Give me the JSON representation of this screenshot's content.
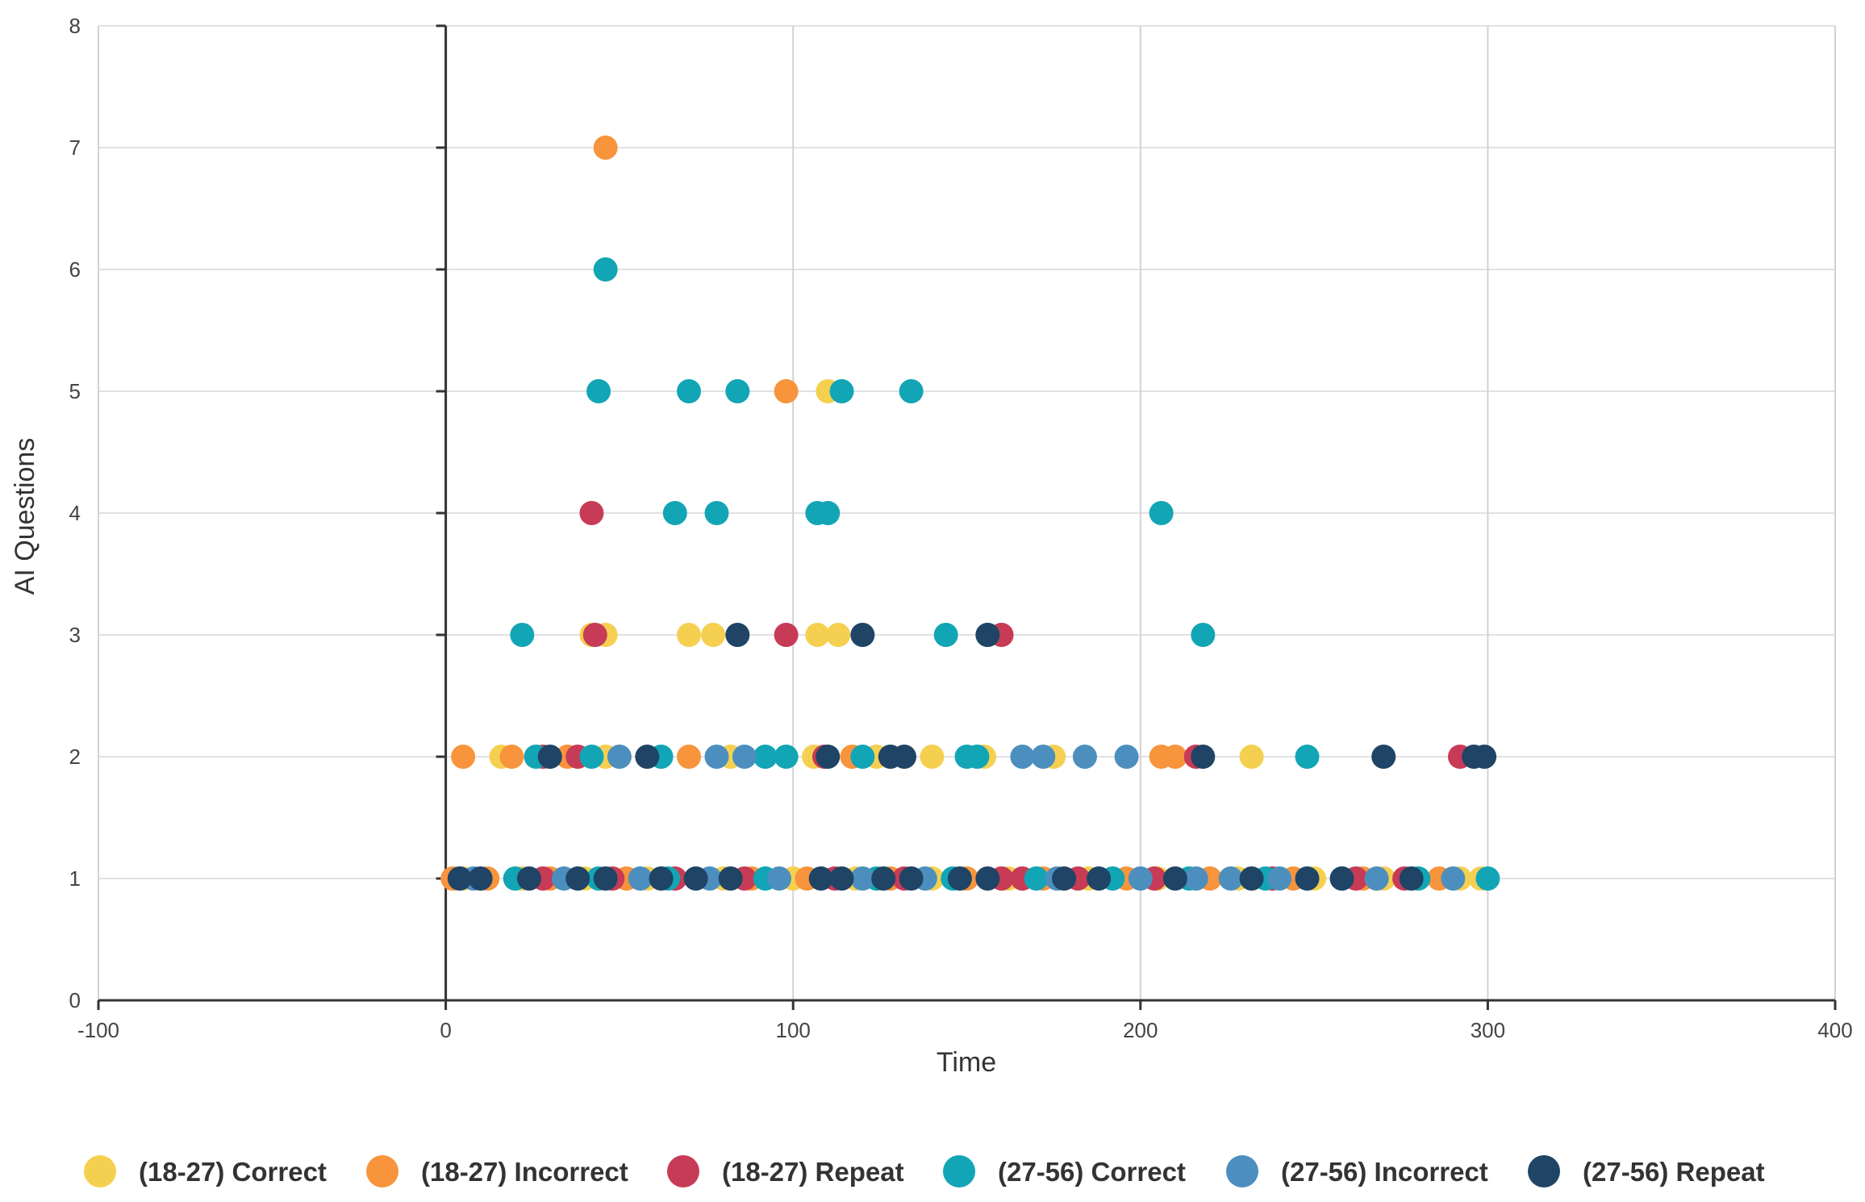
{
  "chart_data": {
    "type": "scatter",
    "title": "",
    "xlabel": "Time",
    "ylabel": "AI Questions",
    "xlim": [
      -100,
      400
    ],
    "ylim": [
      0,
      8
    ],
    "x_ticks": [
      "-100",
      "0",
      "100",
      "200",
      "300",
      "400"
    ],
    "y_ticks": [
      "0",
      "1",
      "2",
      "3",
      "4",
      "5",
      "6",
      "7",
      "8"
    ],
    "grid": true,
    "legend_position": "bottom",
    "series": [
      {
        "name": "(18-27) Correct",
        "color": "#F5D050",
        "points": [
          [
            5,
            1
          ],
          [
            22,
            1
          ],
          [
            40,
            1
          ],
          [
            58,
            1
          ],
          [
            80,
            1
          ],
          [
            100,
            1
          ],
          [
            118,
            1
          ],
          [
            140,
            1
          ],
          [
            162,
            1
          ],
          [
            185,
            1
          ],
          [
            205,
            1
          ],
          [
            228,
            1
          ],
          [
            250,
            1
          ],
          [
            270,
            1
          ],
          [
            292,
            1
          ],
          [
            298,
            1
          ],
          [
            16,
            2
          ],
          [
            46,
            2
          ],
          [
            82,
            2
          ],
          [
            106,
            2
          ],
          [
            124,
            2
          ],
          [
            140,
            2
          ],
          [
            155,
            2
          ],
          [
            175,
            2
          ],
          [
            232,
            2
          ],
          [
            42,
            3
          ],
          [
            46,
            3
          ],
          [
            70,
            3
          ],
          [
            77,
            3
          ],
          [
            107,
            3
          ],
          [
            113,
            3
          ],
          [
            110,
            5
          ]
        ]
      },
      {
        "name": "(18-27) Incorrect",
        "color": "#F7943C",
        "points": [
          [
            2,
            1
          ],
          [
            12,
            1
          ],
          [
            30,
            1
          ],
          [
            52,
            1
          ],
          [
            88,
            1
          ],
          [
            104,
            1
          ],
          [
            128,
            1
          ],
          [
            150,
            1
          ],
          [
            172,
            1
          ],
          [
            196,
            1
          ],
          [
            220,
            1
          ],
          [
            244,
            1
          ],
          [
            264,
            1
          ],
          [
            286,
            1
          ],
          [
            5,
            2
          ],
          [
            19,
            2
          ],
          [
            35,
            2
          ],
          [
            70,
            2
          ],
          [
            117,
            2
          ],
          [
            206,
            2
          ],
          [
            210,
            2
          ],
          [
            46,
            7
          ],
          [
            98,
            5
          ]
        ]
      },
      {
        "name": "(18-27) Repeat",
        "color": "#C73B56",
        "points": [
          [
            28,
            1
          ],
          [
            48,
            1
          ],
          [
            66,
            1
          ],
          [
            86,
            1
          ],
          [
            112,
            1
          ],
          [
            132,
            1
          ],
          [
            160,
            1
          ],
          [
            166,
            1
          ],
          [
            182,
            1
          ],
          [
            204,
            1
          ],
          [
            238,
            1
          ],
          [
            262,
            1
          ],
          [
            276,
            1
          ],
          [
            28,
            2
          ],
          [
            38,
            2
          ],
          [
            109,
            2
          ],
          [
            216,
            2
          ],
          [
            292,
            2
          ],
          [
            43,
            3
          ],
          [
            98,
            3
          ],
          [
            160,
            3
          ],
          [
            42,
            4
          ]
        ]
      },
      {
        "name": "(27-56) Correct",
        "color": "#12A5B5",
        "points": [
          [
            20,
            1
          ],
          [
            44,
            1
          ],
          [
            64,
            1
          ],
          [
            92,
            1
          ],
          [
            124,
            1
          ],
          [
            146,
            1
          ],
          [
            170,
            1
          ],
          [
            192,
            1
          ],
          [
            214,
            1
          ],
          [
            236,
            1
          ],
          [
            258,
            1
          ],
          [
            280,
            1
          ],
          [
            300,
            1
          ],
          [
            26,
            2
          ],
          [
            42,
            2
          ],
          [
            62,
            2
          ],
          [
            92,
            2
          ],
          [
            98,
            2
          ],
          [
            120,
            2
          ],
          [
            150,
            2
          ],
          [
            153,
            2
          ],
          [
            248,
            2
          ],
          [
            22,
            3
          ],
          [
            144,
            3
          ],
          [
            156,
            3
          ],
          [
            218,
            3
          ],
          [
            66,
            4
          ],
          [
            78,
            4
          ],
          [
            107,
            4
          ],
          [
            110,
            4
          ],
          [
            206,
            4
          ],
          [
            44,
            5
          ],
          [
            70,
            5
          ],
          [
            84,
            5
          ],
          [
            114,
            5
          ],
          [
            134,
            5
          ],
          [
            46,
            6
          ]
        ]
      },
      {
        "name": "(27-56) Incorrect",
        "color": "#4C8FBE",
        "points": [
          [
            8,
            1
          ],
          [
            34,
            1
          ],
          [
            56,
            1
          ],
          [
            76,
            1
          ],
          [
            96,
            1
          ],
          [
            120,
            1
          ],
          [
            138,
            1
          ],
          [
            176,
            1
          ],
          [
            200,
            1
          ],
          [
            216,
            1
          ],
          [
            226,
            1
          ],
          [
            240,
            1
          ],
          [
            268,
            1
          ],
          [
            290,
            1
          ],
          [
            50,
            2
          ],
          [
            78,
            2
          ],
          [
            86,
            2
          ],
          [
            166,
            2
          ],
          [
            172,
            2
          ],
          [
            184,
            2
          ],
          [
            196,
            2
          ]
        ]
      },
      {
        "name": "(27-56) Repeat",
        "color": "#1F4465",
        "points": [
          [
            4,
            1
          ],
          [
            10,
            1
          ],
          [
            24,
            1
          ],
          [
            38,
            1
          ],
          [
            46,
            1
          ],
          [
            62,
            1
          ],
          [
            72,
            1
          ],
          [
            82,
            1
          ],
          [
            108,
            1
          ],
          [
            114,
            1
          ],
          [
            126,
            1
          ],
          [
            134,
            1
          ],
          [
            148,
            1
          ],
          [
            156,
            1
          ],
          [
            178,
            1
          ],
          [
            188,
            1
          ],
          [
            210,
            1
          ],
          [
            232,
            1
          ],
          [
            248,
            1
          ],
          [
            258,
            1
          ],
          [
            278,
            1
          ],
          [
            30,
            2
          ],
          [
            58,
            2
          ],
          [
            110,
            2
          ],
          [
            128,
            2
          ],
          [
            132,
            2
          ],
          [
            218,
            2
          ],
          [
            270,
            2
          ],
          [
            296,
            2
          ],
          [
            299,
            2
          ],
          [
            84,
            3
          ],
          [
            120,
            3
          ],
          [
            156,
            3
          ]
        ]
      }
    ]
  }
}
